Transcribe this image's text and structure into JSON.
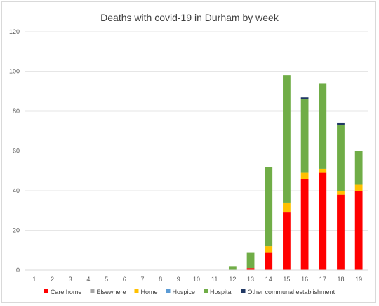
{
  "chart_data": {
    "type": "bar",
    "stacked": true,
    "title": "Deaths with covid-19 in Durham by week",
    "xlabel": "",
    "ylabel": "",
    "ylim": [
      0,
      120
    ],
    "yticks": [
      0,
      20,
      40,
      60,
      80,
      100,
      120
    ],
    "grid": true,
    "legend_position": "bottom",
    "categories": [
      "1",
      "2",
      "3",
      "4",
      "5",
      "6",
      "7",
      "8",
      "9",
      "10",
      "11",
      "12",
      "13",
      "14",
      "15",
      "16",
      "17",
      "18",
      "19"
    ],
    "series": [
      {
        "name": "Care home",
        "color": "#ff0000",
        "values": [
          0,
          0,
          0,
          0,
          0,
          0,
          0,
          0,
          0,
          0,
          0,
          0,
          1,
          9,
          29,
          46,
          49,
          38,
          40
        ]
      },
      {
        "name": "Elsewhere",
        "color": "#a5a5a5",
        "values": [
          0,
          0,
          0,
          0,
          0,
          0,
          0,
          0,
          0,
          0,
          0,
          0,
          0,
          0,
          0,
          0,
          0,
          0,
          0
        ]
      },
      {
        "name": "Home",
        "color": "#ffc000",
        "values": [
          0,
          0,
          0,
          0,
          0,
          0,
          0,
          0,
          0,
          0,
          0,
          0,
          0,
          3,
          5,
          3,
          2,
          2,
          3
        ]
      },
      {
        "name": "Hospice",
        "color": "#5b9bd5",
        "values": [
          0,
          0,
          0,
          0,
          0,
          0,
          0,
          0,
          0,
          0,
          0,
          0,
          0,
          0,
          0,
          0,
          0,
          0,
          0
        ]
      },
      {
        "name": "Hospital",
        "color": "#70ad47",
        "values": [
          0,
          0,
          0,
          0,
          0,
          0,
          0,
          0,
          0,
          0,
          0,
          2,
          8,
          40,
          64,
          37,
          43,
          33,
          17
        ]
      },
      {
        "name": "Other communal establishment",
        "color": "#203864",
        "values": [
          0,
          0,
          0,
          0,
          0,
          0,
          0,
          0,
          0,
          0,
          0,
          0,
          0,
          0,
          0,
          1,
          0,
          1,
          0
        ]
      }
    ]
  }
}
